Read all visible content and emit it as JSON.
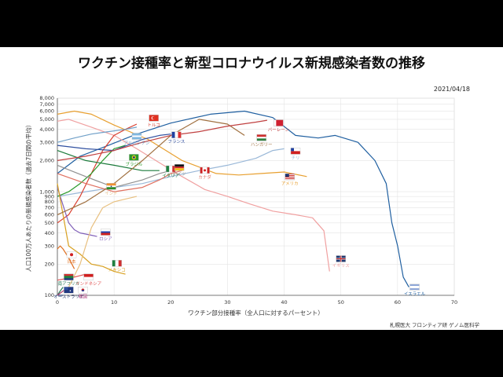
{
  "title": "ワクチン接種率と新型コロナウイルス新規感染者数の推移",
  "date": "2021/04/18",
  "credit": "札幌医大 フロンティア研 ゲノム医科学",
  "chart_data": {
    "type": "line",
    "xlabel": "ワクチン部分接種率（全人口に対するパーセント）",
    "ylabel": "人口100万人あたりの新規感染者数（過去7日間の平均）",
    "xlim": [
      0,
      70
    ],
    "ylim": [
      100,
      8000
    ],
    "yscale": "log",
    "grid": true,
    "legend": "inline labels with flags",
    "x_ticks": [
      "0",
      "10",
      "20",
      "30",
      "40",
      "50",
      "60",
      "70"
    ],
    "y_ticks": [
      "100",
      "200",
      "300",
      "400",
      "500",
      "600",
      "700",
      "800",
      "900",
      "1,000",
      "2,000",
      "3,000",
      "4,000",
      "5,000",
      "6,000",
      "7,000",
      "8,000"
    ],
    "series": [
      {
        "name": "イスラエル",
        "color": "#1f5fa0",
        "x": [
          0,
          4,
          9,
          14,
          20,
          27,
          33,
          38,
          42,
          46,
          49,
          53,
          56,
          58,
          59,
          60,
          61,
          62
        ],
        "y": [
          1500,
          2200,
          2800,
          3600,
          4600,
          5600,
          6000,
          5200,
          3500,
          3300,
          3500,
          3000,
          2000,
          1200,
          500,
          300,
          150,
          120
        ]
      },
      {
        "name": "イギリス",
        "color": "#f0a0a0",
        "x": [
          0,
          2,
          6,
          10,
          14,
          18,
          22,
          26,
          30,
          34,
          38,
          42,
          45,
          47,
          48
        ],
        "y": [
          4800,
          5000,
          4200,
          3500,
          2600,
          1900,
          1400,
          1050,
          900,
          760,
          650,
          600,
          560,
          420,
          170
        ]
      },
      {
        "name": "アメリカ",
        "color": "#e8a030",
        "x": [
          0,
          3,
          6,
          10,
          16,
          22,
          28,
          32,
          36,
          40,
          44
        ],
        "y": [
          5600,
          6000,
          5600,
          4400,
          3200,
          2000,
          1500,
          1450,
          1500,
          1550,
          1400
        ]
      },
      {
        "name": "チリ",
        "color": "#9ab8d8",
        "x": [
          0,
          5,
          10,
          15,
          20,
          25,
          30,
          35,
          38,
          40
        ],
        "y": [
          900,
          1000,
          1100,
          1200,
          1400,
          1600,
          1800,
          2100,
          2500,
          2600
        ]
      },
      {
        "name": "トルコ",
        "color": "#d94030",
        "x": [
          0,
          2,
          4,
          6,
          8,
          10,
          12,
          14
        ],
        "y": [
          500,
          600,
          900,
          1500,
          2500,
          3500,
          4000,
          4500
        ]
      },
      {
        "name": "ブラジル",
        "color": "#2a9a2a",
        "x": [
          0,
          2,
          4,
          6,
          8,
          10,
          12
        ],
        "y": [
          900,
          1000,
          1200,
          1500,
          2000,
          2600,
          2800
        ]
      },
      {
        "name": "ロシア",
        "color": "#8060b8",
        "x": [
          0,
          2,
          3,
          4,
          5,
          6,
          7
        ],
        "y": [
          1100,
          500,
          430,
          400,
          390,
          380,
          370
        ]
      },
      {
        "name": "日本",
        "color": "#e07020",
        "x": [
          0,
          0.5,
          1,
          2,
          3
        ],
        "y": [
          280,
          300,
          280,
          230,
          180
        ]
      },
      {
        "name": "メキシコ",
        "color": "#d8a020",
        "x": [
          0,
          2,
          4,
          6,
          8,
          10,
          12
        ],
        "y": [
          1200,
          300,
          250,
          200,
          190,
          170,
          160
        ]
      },
      {
        "name": "インド",
        "color": "#e8c080",
        "x": [
          0,
          2,
          4,
          6,
          8,
          10,
          12,
          14
        ],
        "y": [
          100,
          120,
          200,
          450,
          700,
          800,
          850,
          900
        ]
      },
      {
        "name": "カナダ",
        "color": "#e07060",
        "x": [
          0,
          5,
          10,
          15,
          18,
          20,
          22
        ],
        "y": [
          1500,
          1200,
          1000,
          1100,
          1300,
          1500,
          1600
        ]
      },
      {
        "name": "ドイツ",
        "color": "#909090",
        "x": [
          0,
          5,
          10,
          15,
          18,
          20
        ],
        "y": [
          1800,
          1400,
          1100,
          1300,
          1500,
          1600
        ]
      },
      {
        "name": "フランス",
        "color": "#3050a0",
        "x": [
          0,
          5,
          10,
          15,
          18,
          20
        ],
        "y": [
          2800,
          2600,
          2500,
          3200,
          3500,
          3600
        ]
      },
      {
        "name": "イタリア",
        "color": "#1a7a3a",
        "x": [
          0,
          5,
          10,
          15,
          18
        ],
        "y": [
          2500,
          2000,
          1800,
          1600,
          1600
        ]
      },
      {
        "name": "ハンガリー",
        "color": "#a07040",
        "x": [
          0,
          5,
          10,
          15,
          20,
          25,
          30,
          33
        ],
        "y": [
          600,
          800,
          1200,
          2000,
          3500,
          5000,
          4500,
          3500
        ]
      },
      {
        "name": "バーレーン",
        "color": "#c04040",
        "x": [
          0,
          5,
          10,
          15,
          20,
          25,
          30,
          35,
          37
        ],
        "y": [
          2000,
          2200,
          2500,
          3000,
          3500,
          3800,
          4300,
          4700,
          4900
        ]
      },
      {
        "name": "アルゼンチン",
        "color": "#70a0c8",
        "x": [
          0,
          3,
          6,
          9,
          12,
          14
        ],
        "y": [
          3000,
          3300,
          3600,
          3800,
          4000,
          4200
        ]
      },
      {
        "name": "南アフリカ",
        "color": "#2a7a5a",
        "x": [
          0,
          0.5,
          1
        ],
        "y": [
          100,
          110,
          120
        ]
      },
      {
        "name": "インドネシア",
        "color": "#e05050",
        "x": [
          0,
          3,
          5
        ],
        "y": [
          140,
          150,
          160
        ]
      },
      {
        "name": "オーストラリア",
        "color": "#203870",
        "x": [
          0,
          0.5,
          1
        ],
        "y": [
          100,
          100,
          100
        ]
      },
      {
        "name": "韓国",
        "color": "#b04080",
        "x": [
          0,
          0.5,
          1,
          2
        ],
        "y": [
          100,
          105,
          110,
          120
        ]
      }
    ],
    "labels": [
      {
        "text": "イスラエル",
        "flag": "israel",
        "x": 63,
        "y": 112
      },
      {
        "text": "イギリス",
        "flag": "uk",
        "x": 50,
        "y": 210
      },
      {
        "text": "アメリカ",
        "flag": "usa",
        "x": 41,
        "y": 1300
      },
      {
        "text": "チリ",
        "flag": "chile",
        "x": 42,
        "y": 2300
      },
      {
        "text": "バーレーン",
        "flag": "bahrain",
        "x": 39,
        "y": 4300
      },
      {
        "text": "ハンガリー",
        "flag": "hungary",
        "x": 36,
        "y": 3100
      },
      {
        "text": "トルコ",
        "flag": "turkey",
        "x": 17,
        "y": 4800
      },
      {
        "text": "フランス",
        "flag": "france",
        "x": 21,
        "y": 3300
      },
      {
        "text": "ブラジル",
        "flag": "brazil",
        "x": 13.5,
        "y": 2000
      },
      {
        "text": "アルゼンチン",
        "flag": "argentina",
        "x": 14,
        "y": 3200
      },
      {
        "text": "イタリア",
        "flag": "italy",
        "x": 20,
        "y": 1550
      },
      {
        "text": "ドイツ",
        "flag": "germany",
        "x": 21.5,
        "y": 1600
      },
      {
        "text": "カナダ",
        "flag": "canada",
        "x": 26,
        "y": 1500
      },
      {
        "text": "インド",
        "flag": "india",
        "x": 9.5,
        "y": 1050
      },
      {
        "text": "ロシア",
        "flag": "russia",
        "x": 8.5,
        "y": 380
      },
      {
        "text": "日本",
        "flag": "japan",
        "x": 2.5,
        "y": 230
      },
      {
        "text": "メキシコ",
        "flag": "mexico",
        "x": 10.5,
        "y": 190
      },
      {
        "text": "南アフリカ",
        "flag": "southafrica",
        "x": 2,
        "y": 140
      },
      {
        "text": "インドネシア",
        "flag": "indonesia",
        "x": 5.5,
        "y": 140
      },
      {
        "text": "オーストラリア",
        "flag": "australia",
        "x": 2,
        "y": 105
      },
      {
        "text": "韓国",
        "flag": "korea",
        "x": 4.5,
        "y": 105
      }
    ]
  }
}
